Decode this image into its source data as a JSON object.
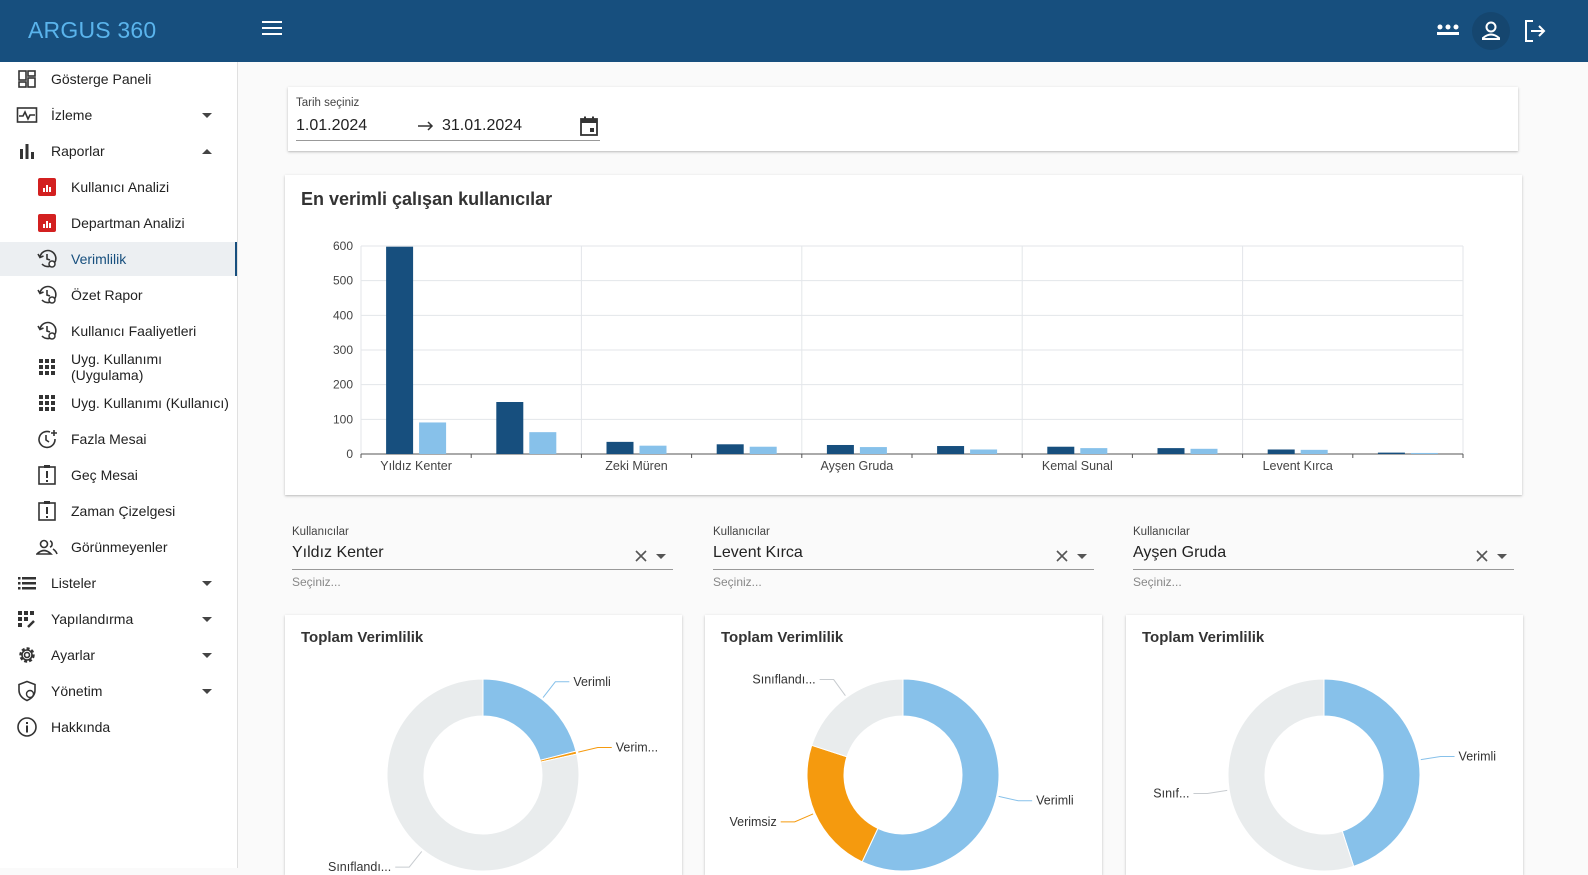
{
  "app": {
    "brand": "ARGUS 360"
  },
  "sidebar": {
    "items": [
      {
        "label": "Gösterge Paneli"
      },
      {
        "label": "İzleme"
      },
      {
        "label": "Raporlar"
      },
      {
        "label": "Kullanıcı Analizi"
      },
      {
        "label": "Departman Analizi"
      },
      {
        "label": "Verimlilik"
      },
      {
        "label": "Özet Rapor"
      },
      {
        "label": "Kullanıcı Faaliyetleri"
      },
      {
        "label": "Uyg. Kullanımı (Uygulama)"
      },
      {
        "label": "Uyg. Kullanımı (Kullanıcı)"
      },
      {
        "label": "Fazla Mesai"
      },
      {
        "label": "Geç Mesai"
      },
      {
        "label": "Zaman Çizelgesi"
      },
      {
        "label": "Görünmeyenler"
      },
      {
        "label": "Listeler"
      },
      {
        "label": "Yapılandırma"
      },
      {
        "label": "Ayarlar"
      },
      {
        "label": "Yönetim"
      },
      {
        "label": "Hakkında"
      }
    ]
  },
  "date_filter": {
    "label": "Tarih seçiniz",
    "start": "1.01.2024",
    "end": "31.01.2024"
  },
  "bar_chart": {
    "title": "En verimli çalışan kullanıcılar"
  },
  "chart_data": [
    {
      "type": "bar",
      "title": "En verimli çalışan kullanıcılar",
      "categories": [
        "Yıldız Kenter",
        "",
        "Zeki Müren",
        "",
        "Ayşen Gruda",
        "",
        "Kemal Sunal",
        "",
        "Levent Kırca",
        ""
      ],
      "series": [
        {
          "color": "#174f7e",
          "values": [
            598,
            150,
            35,
            28,
            26,
            23,
            21,
            17,
            13,
            4
          ]
        },
        {
          "color": "#87c1ea",
          "values": [
            91,
            63,
            24,
            21,
            20,
            13,
            17,
            15,
            12,
            3
          ]
        }
      ],
      "ylim": [
        0,
        600
      ],
      "yticks": [
        0,
        100,
        200,
        300,
        400,
        500,
        600
      ],
      "grid": true
    },
    {
      "type": "pie",
      "title": "Toplam Verimlilik",
      "labels": [
        "Verimli",
        "Verim...",
        "Sınıflandı..."
      ],
      "values": [
        21,
        0.5,
        78.5
      ],
      "colors": [
        "#87c1ea",
        "#f59a0e",
        "#e9eced"
      ]
    },
    {
      "type": "pie",
      "title": "Toplam Verimlilik",
      "labels": [
        "Verimli",
        "Verimsiz",
        "Sınıflandı..."
      ],
      "values": [
        57,
        23,
        20
      ],
      "colors": [
        "#87c1ea",
        "#f59a0e",
        "#e9eced"
      ]
    },
    {
      "type": "pie",
      "title": "Toplam Verimlilik",
      "labels": [
        "Verimli",
        "Sınıf..."
      ],
      "values": [
        45,
        55
      ],
      "colors": [
        "#87c1ea",
        "#e9eced"
      ]
    }
  ],
  "selectors": [
    {
      "label": "Kullanıcılar",
      "value": "Yıldız Kenter",
      "hint": "Seçiniz..."
    },
    {
      "label": "Kullanıcılar",
      "value": "Levent Kırca",
      "hint": "Seçiniz..."
    },
    {
      "label": "Kullanıcılar",
      "value": "Ayşen Gruda",
      "hint": "Seçiniz..."
    }
  ],
  "donuts": [
    {
      "title": "Toplam Verimlilik"
    },
    {
      "title": "Toplam Verimlilik"
    },
    {
      "title": "Toplam Verimlilik"
    }
  ]
}
